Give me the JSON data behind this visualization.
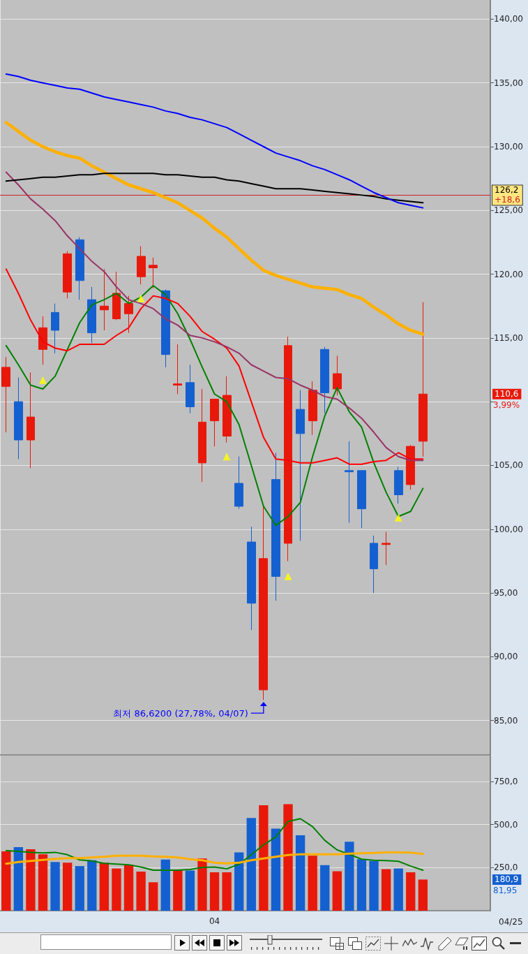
{
  "chart_data": [
    {
      "type": "candlestick",
      "categories": [
        null,
        null,
        null,
        null,
        null,
        null,
        null,
        null,
        null,
        null,
        null,
        null,
        null,
        null,
        null,
        null,
        null,
        null,
        null,
        null,
        null,
        null,
        null,
        null,
        null,
        null,
        null,
        null,
        null,
        null,
        null,
        null,
        null,
        null,
        null
      ],
      "ohlc": [
        [
          111.2,
          113.5,
          107.6,
          112.7
        ],
        [
          110.0,
          111.9,
          105.5,
          107.0
        ],
        [
          107.0,
          112.3,
          104.8,
          108.8
        ],
        [
          114.1,
          116.7,
          112.9,
          115.8
        ],
        [
          117.0,
          117.7,
          113.8,
          115.6
        ],
        [
          118.6,
          121.8,
          118.1,
          121.6
        ],
        [
          122.7,
          122.9,
          118.0,
          119.5
        ],
        [
          118.0,
          119.0,
          114.6,
          115.4
        ],
        [
          117.2,
          120.4,
          115.6,
          117.5
        ],
        [
          116.5,
          120.2,
          116.4,
          118.5
        ],
        [
          116.9,
          118.3,
          115.4,
          117.7
        ],
        [
          119.8,
          122.2,
          119.2,
          121.4
        ],
        [
          120.5,
          121.3,
          118.9,
          120.7
        ],
        [
          118.7,
          118.8,
          112.7,
          113.7
        ],
        [
          111.3,
          114.5,
          110.6,
          111.4
        ],
        [
          111.5,
          112.9,
          109.1,
          109.6
        ],
        [
          105.2,
          111.0,
          103.7,
          108.4
        ],
        [
          108.5,
          110.2,
          106.5,
          110.2
        ],
        [
          107.3,
          112.0,
          106.8,
          110.5
        ],
        [
          103.6,
          105.7,
          101.6,
          101.8
        ],
        [
          99.0,
          100.2,
          92.1,
          94.2
        ],
        [
          87.4,
          101.8,
          86.62,
          97.7
        ],
        [
          103.9,
          106.0,
          94.4,
          96.3
        ],
        [
          98.9,
          115.1,
          97.5,
          114.4
        ],
        [
          109.4,
          110.9,
          99.1,
          107.5
        ],
        [
          108.5,
          111.6,
          107.4,
          110.9
        ],
        [
          114.1,
          114.3,
          109.1,
          110.7
        ],
        [
          111.0,
          113.6,
          110.5,
          112.2
        ],
        [
          104.6,
          106.9,
          100.5,
          104.5
        ],
        [
          104.6,
          104.6,
          100.1,
          101.6
        ],
        [
          98.9,
          99.5,
          95.0,
          96.9
        ],
        [
          98.8,
          99.8,
          97.2,
          98.9
        ],
        [
          104.6,
          104.9,
          102.0,
          102.7
        ],
        [
          103.5,
          106.6,
          103.1,
          106.5
        ],
        [
          106.9,
          117.8,
          105.7,
          110.6
        ]
      ],
      "colors": [
        "#e8190b",
        "#1560d0",
        "#e8190b",
        "#e8190b",
        "#1560d0",
        "#e8190b",
        "#1560d0",
        "#1560d0",
        "#e8190b",
        "#e8190b",
        "#e8190b",
        "#e8190b",
        "#e8190b",
        "#1560d0",
        "#e8190b",
        "#1560d0",
        "#e8190b",
        "#e8190b",
        "#e8190b",
        "#1560d0",
        "#1560d0",
        "#e8190b",
        "#1560d0",
        "#e8190b",
        "#1560d0",
        "#e8190b",
        "#1560d0",
        "#e8190b",
        "#1560d0",
        "#1560d0",
        "#1560d0",
        "#e8190b",
        "#1560d0",
        "#e8190b",
        "#e8190b"
      ],
      "series": [
        {
          "type": "line",
          "color": "#008000",
          "values": [
            114.4,
            112.9,
            111.3,
            111.0,
            112.0,
            114.1,
            116.2,
            117.6,
            118.0,
            118.5,
            117.7,
            118.2,
            119.1,
            118.4,
            116.9,
            114.9,
            112.7,
            110.6,
            110.0,
            108.2,
            105.0,
            101.8,
            100.3,
            101.0,
            102.1,
            105.7,
            108.9,
            111.1,
            109.2,
            108.0,
            105.2,
            102.9,
            101.0,
            101.4,
            103.2
          ]
        },
        {
          "type": "line",
          "color": "#ff0000",
          "values": [
            120.4,
            118.5,
            116.4,
            114.7,
            114.2,
            114.0,
            114.5,
            114.5,
            114.5,
            115.2,
            115.8,
            117.3,
            118.3,
            118.1,
            117.7,
            116.7,
            115.5,
            114.9,
            114.2,
            112.8,
            110.0,
            107.2,
            105.5,
            105.4,
            105.2,
            105.2,
            105.4,
            105.6,
            105.1,
            105.1,
            105.3,
            105.4,
            106.0,
            105.5,
            105.5
          ]
        },
        {
          "type": "line",
          "color": "#993366",
          "values": [
            128.0,
            127.0,
            125.9,
            125.1,
            124.2,
            123.0,
            122.0,
            121.0,
            120.2,
            119.0,
            118.0,
            117.7,
            117.3,
            116.5,
            116.0,
            115.2,
            115.0,
            114.7,
            114.3,
            113.8,
            112.9,
            112.4,
            111.9,
            111.8,
            111.3,
            110.9,
            110.4,
            110.2,
            109.5,
            108.7,
            107.6,
            106.4,
            105.7,
            105.4,
            105.4
          ]
        },
        {
          "type": "line",
          "color": "#ffb000",
          "values": [
            131.9,
            131.2,
            130.5,
            130.0,
            129.6,
            129.3,
            129.1,
            128.5,
            128.0,
            127.5,
            127.0,
            126.7,
            126.4,
            126.0,
            125.6,
            125.0,
            124.4,
            123.6,
            122.9,
            122.0,
            121.1,
            120.3,
            119.9,
            119.6,
            119.3,
            119.0,
            118.9,
            118.8,
            118.4,
            118.1,
            117.4,
            116.8,
            116.1,
            115.6,
            115.3
          ]
        },
        {
          "type": "line",
          "color": "#000000",
          "values": [
            127.3,
            127.4,
            127.5,
            127.6,
            127.6,
            127.7,
            127.8,
            127.8,
            127.9,
            127.9,
            127.9,
            127.9,
            127.9,
            127.8,
            127.8,
            127.7,
            127.6,
            127.6,
            127.4,
            127.3,
            127.1,
            126.9,
            126.7,
            126.7,
            126.7,
            126.6,
            126.5,
            126.4,
            126.3,
            126.2,
            126.1,
            125.9,
            125.8,
            125.7,
            125.6
          ]
        },
        {
          "type": "line",
          "color": "#0000ff",
          "values": [
            135.7,
            135.5,
            135.2,
            135.0,
            134.8,
            134.6,
            134.5,
            134.2,
            133.9,
            133.7,
            133.5,
            133.3,
            133.1,
            132.8,
            132.6,
            132.3,
            132.1,
            131.8,
            131.5,
            131.0,
            130.5,
            130.0,
            129.5,
            129.2,
            128.9,
            128.5,
            128.2,
            127.8,
            127.4,
            126.9,
            126.4,
            126.0,
            125.6,
            125.4,
            125.2
          ]
        },
        {
          "type": "scatter",
          "color": "#ffff00",
          "marker": "triangle",
          "values": [
            null,
            null,
            null,
            111.7,
            null,
            null,
            null,
            null,
            null,
            null,
            null,
            118.1,
            null,
            null,
            null,
            null,
            null,
            null,
            105.7,
            null,
            null,
            null,
            null,
            96.3,
            null,
            null,
            null,
            null,
            null,
            null,
            null,
            null,
            100.9,
            null,
            null
          ]
        }
      ],
      "ylim": [
        82.3,
        141.5
      ],
      "yticks": [
        {
          "value": 85,
          "label": "85,00"
        },
        {
          "value": 90,
          "label": "90,00"
        },
        {
          "value": 95,
          "label": "95,00"
        },
        {
          "value": 100,
          "label": "100,00"
        },
        {
          "value": 105,
          "label": "105,00"
        },
        {
          "value": 110,
          "label": null
        },
        {
          "value": 115,
          "label": "115,00"
        },
        {
          "value": 120,
          "label": "120,00"
        },
        {
          "value": 125,
          "label": "125,00"
        },
        {
          "value": 130,
          "label": "130,00"
        },
        {
          "value": 135,
          "label": "135,00"
        },
        {
          "value": 140,
          "label": "140,00"
        }
      ],
      "ref_lines": [
        {
          "axis": "y",
          "value": 126.2,
          "label": "126,2\n+18,6",
          "color": "#d02020"
        }
      ],
      "annotations": [
        "최저 86,6200 (27,78%, 04/07)",
        "110,6\n3,99%"
      ],
      "grid": true,
      "tick_labels": "y"
    },
    {
      "type": "bar",
      "categories": [
        null,
        null,
        null,
        null,
        null,
        null,
        null,
        null,
        null,
        null,
        null,
        null,
        null,
        null,
        null,
        null,
        null,
        "04",
        null,
        null,
        null,
        null,
        null,
        null,
        null,
        null,
        null,
        null,
        null,
        null,
        null,
        null,
        null,
        null,
        null
      ],
      "series": [
        {
          "type": "bar",
          "colors": [
            "#e8190b",
            "#1560d0",
            "#e8190b",
            "#e8190b",
            "#1560d0",
            "#e8190b",
            "#1560d0",
            "#1560d0",
            "#e8190b",
            "#e8190b",
            "#e8190b",
            "#e8190b",
            "#e8190b",
            "#1560d0",
            "#e8190b",
            "#1560d0",
            "#e8190b",
            "#e8190b",
            "#e8190b",
            "#1560d0",
            "#1560d0",
            "#e8190b",
            "#1560d0",
            "#e8190b",
            "#1560d0",
            "#e8190b",
            "#1560d0",
            "#e8190b",
            "#1560d0",
            "#1560d0",
            "#1560d0",
            "#e8190b",
            "#1560d0",
            "#e8190b",
            "#e8190b"
          ],
          "values": [
            345,
            369,
            357,
            327,
            283,
            279,
            259,
            293,
            279,
            245,
            267,
            227,
            165,
            297,
            235,
            233,
            303,
            223,
            223,
            339,
            538,
            612,
            476,
            618,
            438,
            319,
            265,
            229,
            400,
            299,
            289,
            241,
            245,
            223,
            180.9
          ]
        },
        {
          "type": "line",
          "color": "#008000",
          "values": [
            349,
            345,
            339,
            335,
            339,
            325,
            295,
            289,
            275,
            271,
            267,
            253,
            235,
            235,
            235,
            239,
            251,
            253,
            243,
            269,
            325,
            382,
            428,
            518,
            534,
            488,
            408,
            353,
            327,
            299,
            293,
            291,
            287,
            259,
            235
          ]
        },
        {
          "type": "line",
          "color": "#ffb000",
          "values": [
            273,
            283,
            289,
            295,
            301,
            305,
            305,
            309,
            313,
            319,
            319,
            319,
            315,
            313,
            309,
            299,
            293,
            279,
            275,
            279,
            293,
            303,
            313,
            323,
            327,
            327,
            327,
            327,
            331,
            333,
            335,
            339,
            339,
            337,
            329
          ]
        }
      ],
      "ylim": [
        0,
        900
      ],
      "yticks": [
        {
          "value": 250,
          "label": "250,0"
        },
        {
          "value": 500,
          "label": "500,0"
        },
        {
          "value": 750,
          "label": "750,0"
        }
      ],
      "annotations": [
        "180,9\n81,95",
        "04/25"
      ],
      "grid": true
    }
  ]
}
